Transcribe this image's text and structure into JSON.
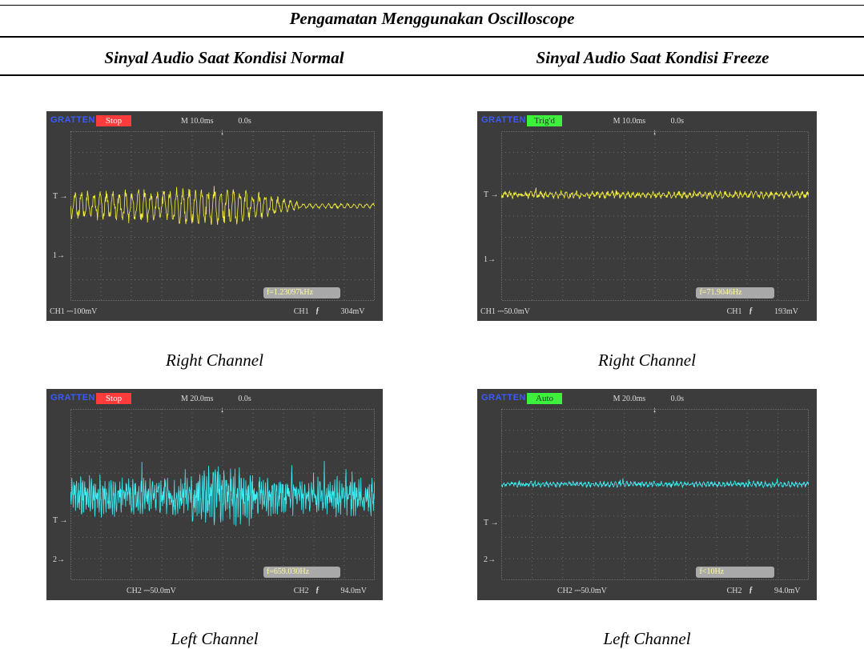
{
  "table": {
    "title": "Pengamatan Menggunakan Oscilloscope",
    "col_normal": "Sinyal Audio Saat Kondisi Normal",
    "col_freeze": "Sinyal Audio Saat Kondisi Freeze"
  },
  "captions": {
    "normal_right": "Right Channel",
    "freeze_right": "Right Channel",
    "normal_left": "Left Channel",
    "freeze_left": "Left Channel"
  },
  "scopes": {
    "normal_right": {
      "brand": "GRATTEN",
      "status": "Stop",
      "status_color": "#ff3b3b",
      "timebase": "M 10.0ms",
      "delay": "0.0s",
      "trigger_label": "T",
      "channel_marker": "1",
      "bottom_left": "CH1 ⎓100mV",
      "bottom_ch": "CH1",
      "trigger_edge": "ƒ",
      "trigger_level": "304mV",
      "frequency": "f=1.23097kHz",
      "trace_color": "#f5f03c"
    },
    "freeze_right": {
      "brand": "GRATTEN",
      "status": "Trig'd",
      "status_color": "#3cf03c",
      "timebase": "M 10.0ms",
      "delay": "0.0s",
      "trigger_label": "T",
      "channel_marker": "1",
      "bottom_left": "CH1 ⎓50.0mV",
      "bottom_ch": "CH1",
      "trigger_edge": "ƒ",
      "trigger_level": "193mV",
      "frequency": "f=71.9046Hz",
      "trace_color": "#f5f03c"
    },
    "normal_left": {
      "brand": "GRATTEN",
      "status": "Stop",
      "status_color": "#ff3b3b",
      "timebase": "M 20.0ms",
      "delay": "0.0s",
      "trigger_label": "T",
      "channel_marker": "2",
      "bottom_left": "CH2 ⎓50.0mV",
      "bottom_ch": "CH2",
      "trigger_edge": "ƒ",
      "trigger_level": "94.0mV",
      "frequency": "f=659.030Hz",
      "trace_color": "#3cf0f5"
    },
    "freeze_left": {
      "brand": "GRATTEN",
      "status": "Auto",
      "status_color": "#3cf03c",
      "timebase": "M 20.0ms",
      "delay": "0.0s",
      "trigger_label": "T",
      "channel_marker": "2",
      "bottom_left": "CH2 ⎓50.0mV",
      "bottom_ch": "CH2",
      "trigger_edge": "ƒ",
      "trigger_level": "94.0mV",
      "frequency": "f<10Hz",
      "trace_color": "#3cf0f5"
    }
  }
}
